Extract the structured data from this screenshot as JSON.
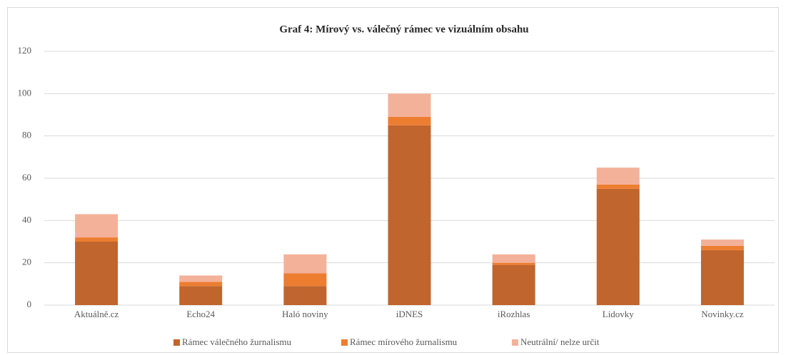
{
  "chart_data": {
    "type": "bar",
    "stacked": true,
    "title": "Graf 4: Mírový vs. válečný rámec ve vizuálním obsahu",
    "categories": [
      "Aktuálně.cz",
      "Echo24",
      "Haló noviny",
      "iDNES",
      "iRozhlas",
      "Lidovky",
      "Novinky.cz"
    ],
    "series": [
      {
        "name": "Rámec válečného žurnalismu",
        "color": "#c0652d",
        "values": [
          30,
          9,
          9,
          85,
          19,
          55,
          26
        ]
      },
      {
        "name": "Rámec mírového žurnalismu",
        "color": "#ed7d31",
        "values": [
          2,
          2,
          6,
          4,
          1,
          2,
          2
        ]
      },
      {
        "name": "Neutrální/ nelze určit",
        "color": "#f4b19a",
        "values": [
          11,
          3,
          9,
          11,
          4,
          8,
          3
        ]
      }
    ],
    "ylim": [
      0,
      120
    ],
    "yticks": [
      0,
      20,
      40,
      60,
      80,
      100,
      120
    ],
    "grid": true,
    "legend": "bottom"
  }
}
